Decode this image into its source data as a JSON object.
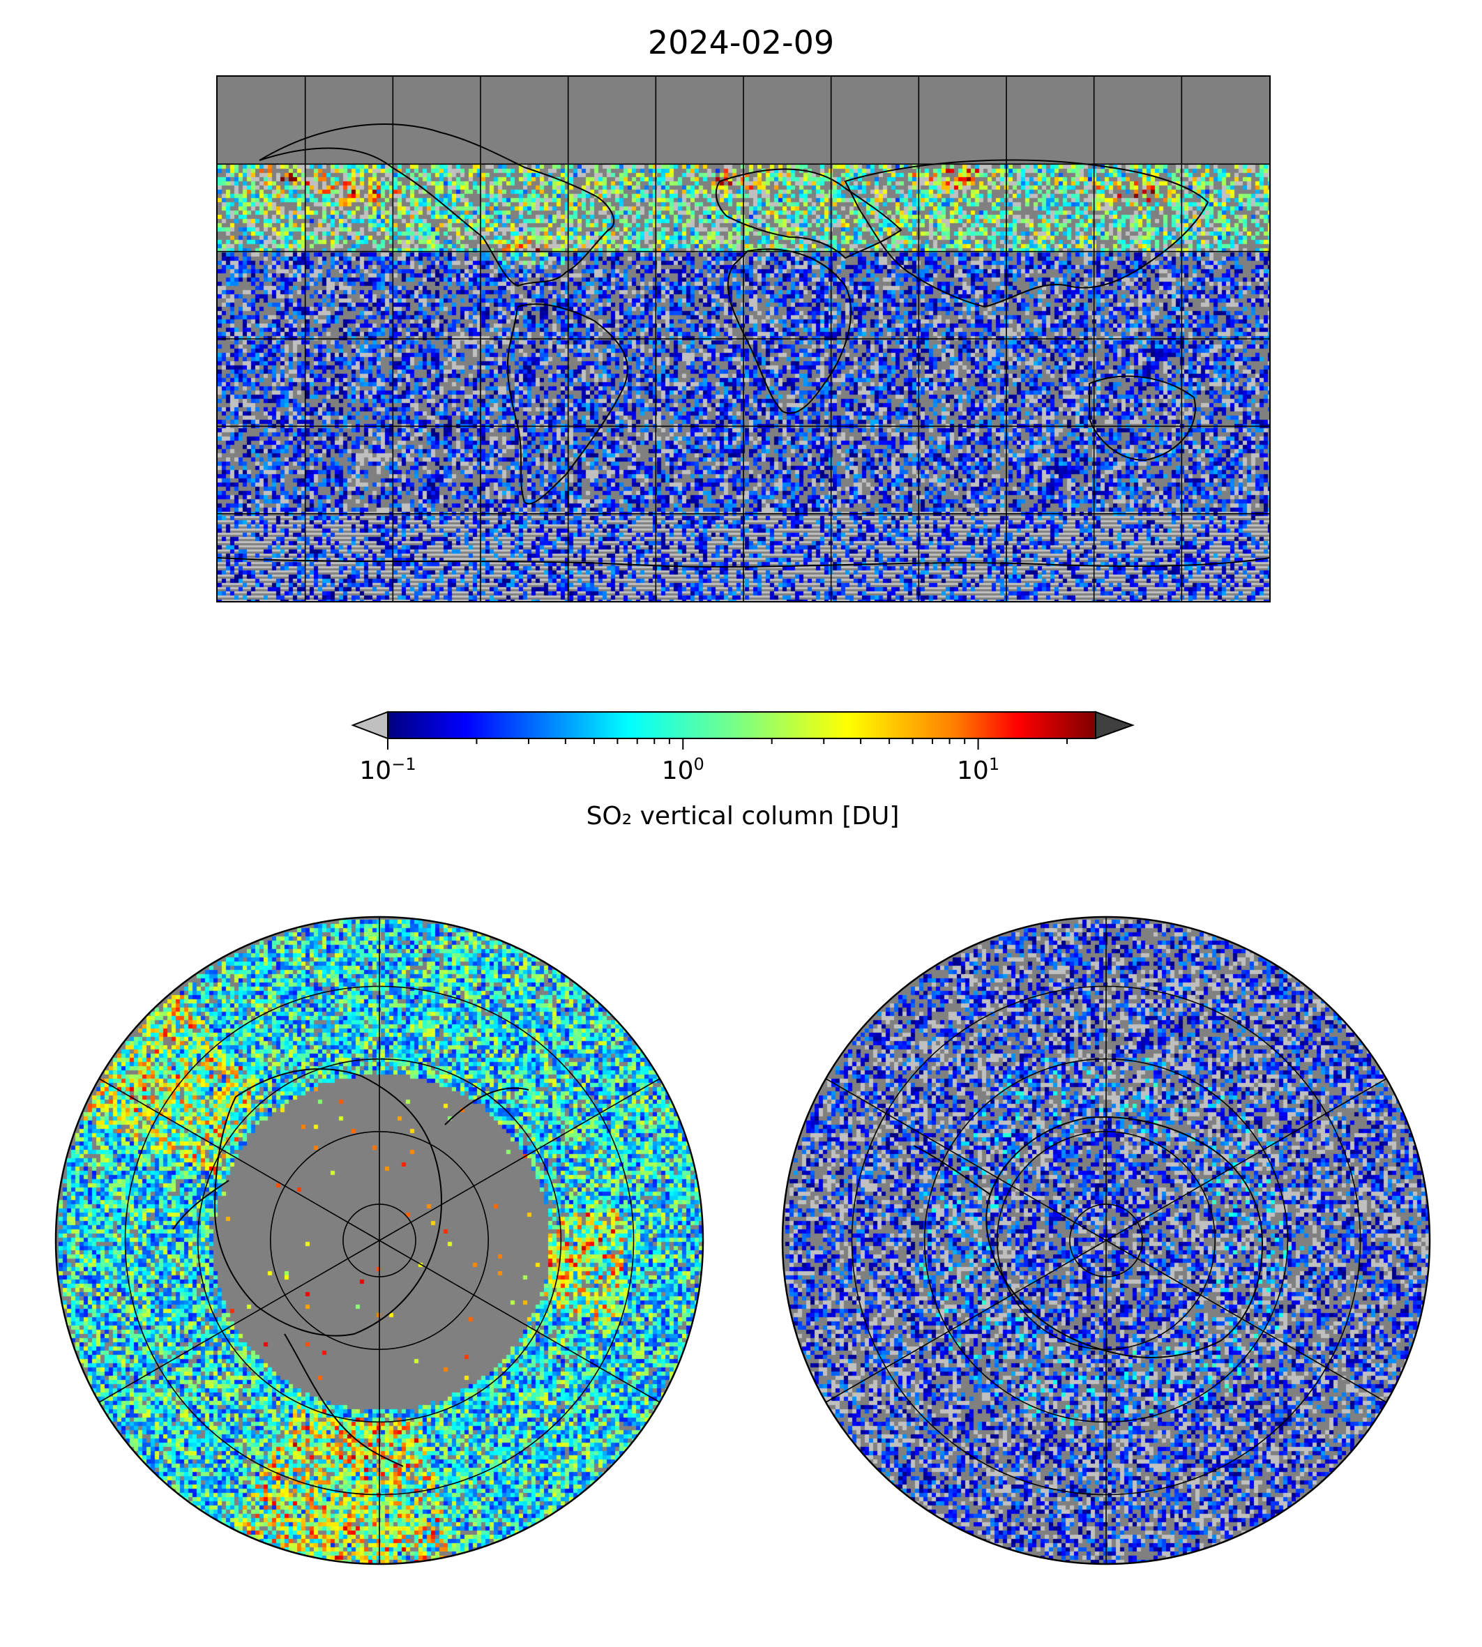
{
  "title": "2024-02-09",
  "colors": {
    "missing": "#808080",
    "below_range": "#c0c0c0",
    "above_range": "#404040",
    "colormap": [
      "#00007f",
      "#0000ff",
      "#007fff",
      "#00ffff",
      "#7fff7f",
      "#ffff00",
      "#ff7f00",
      "#ff0000",
      "#7f0000"
    ]
  },
  "colorbar": {
    "scale": "log",
    "range": [
      0.1,
      25
    ],
    "ticks": [
      {
        "value": 0.1,
        "base": "10",
        "exp": "−1"
      },
      {
        "value": 1,
        "base": "10",
        "exp": "0"
      },
      {
        "value": 10,
        "base": "10",
        "exp": "1"
      }
    ],
    "label": "SO₂ vertical column [DU]",
    "extend": "both"
  },
  "panels": [
    {
      "name": "global",
      "projection": "equirectangular",
      "gridlines": {
        "lon_step": 30,
        "lat_step": 30
      }
    },
    {
      "name": "north-polar",
      "projection": "polar-stereographic-north",
      "gridlines": {
        "rings_deg": [
          80,
          60,
          40,
          20
        ],
        "meridians_step": 60
      }
    },
    {
      "name": "south-polar",
      "projection": "polar-stereographic-south",
      "gridlines": {
        "rings_deg": [
          -80,
          -60,
          -40,
          -20
        ],
        "meridians_step": 60
      }
    }
  ]
}
